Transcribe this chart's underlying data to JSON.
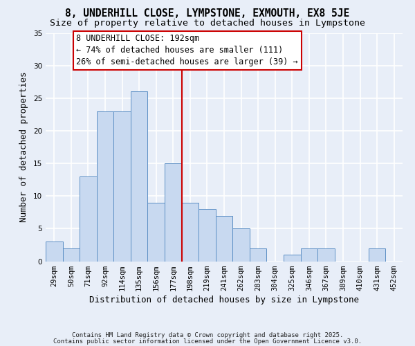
{
  "title": "8, UNDERHILL CLOSE, LYMPSTONE, EXMOUTH, EX8 5JE",
  "subtitle": "Size of property relative to detached houses in Lympstone",
  "xlabel": "Distribution of detached houses by size in Lympstone",
  "ylabel": "Number of detached properties",
  "bar_color": "#c8d9f0",
  "bar_edge_color": "#5b8ec4",
  "background_color": "#e8eef8",
  "grid_color": "#ffffff",
  "bin_labels": [
    "29sqm",
    "50sqm",
    "71sqm",
    "92sqm",
    "114sqm",
    "135sqm",
    "156sqm",
    "177sqm",
    "198sqm",
    "219sqm",
    "241sqm",
    "262sqm",
    "283sqm",
    "304sqm",
    "325sqm",
    "346sqm",
    "367sqm",
    "389sqm",
    "410sqm",
    "431sqm",
    "452sqm"
  ],
  "bar_heights": [
    3,
    2,
    13,
    23,
    23,
    26,
    9,
    15,
    9,
    8,
    7,
    5,
    2,
    0,
    1,
    2,
    2,
    0,
    0,
    2,
    0
  ],
  "vline_x": 7.5,
  "vline_color": "#cc0000",
  "ylim": [
    0,
    35
  ],
  "yticks": [
    0,
    5,
    10,
    15,
    20,
    25,
    30,
    35
  ],
  "annotation_line1": "8 UNDERHILL CLOSE: 192sqm",
  "annotation_line2": "← 74% of detached houses are smaller (111)",
  "annotation_line3": "26% of semi-detached houses are larger (39) →",
  "footer1": "Contains HM Land Registry data © Crown copyright and database right 2025.",
  "footer2": "Contains public sector information licensed under the Open Government Licence v3.0.",
  "title_fontsize": 10.5,
  "subtitle_fontsize": 9.5,
  "axis_label_fontsize": 9,
  "tick_fontsize": 7.5,
  "annotation_fontsize": 8.5,
  "footer_fontsize": 6.5
}
